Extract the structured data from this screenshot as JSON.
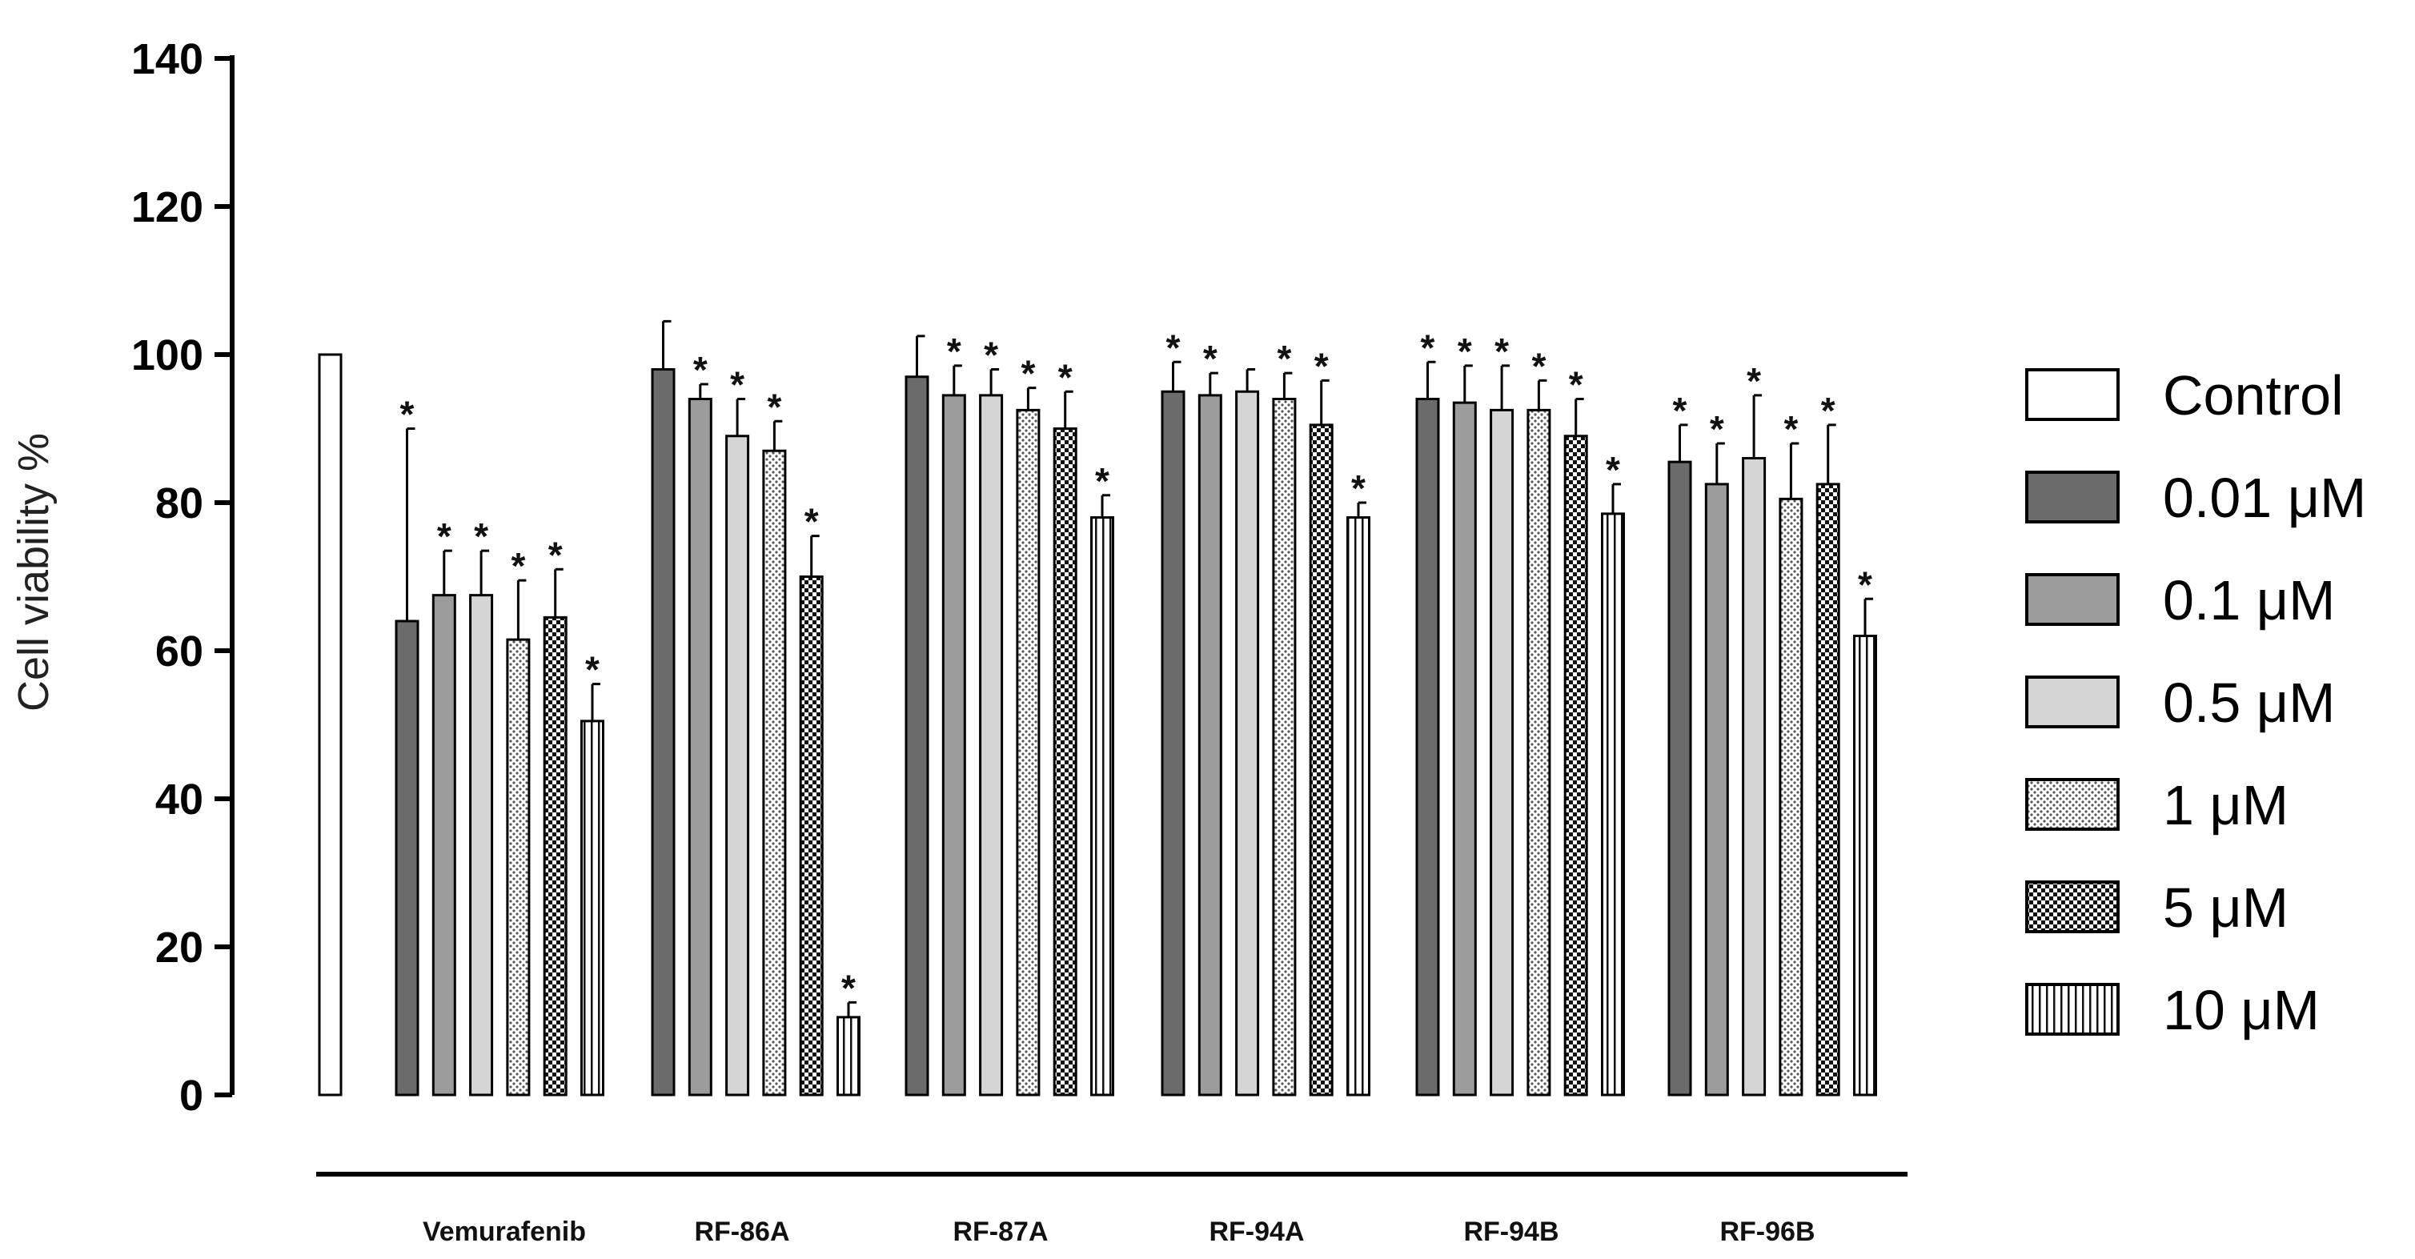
{
  "chart_data": {
    "type": "bar",
    "ylabel": "Cell viability %",
    "xlabel": "",
    "ylim": [
      0,
      140
    ],
    "yticks": [
      "0",
      "20",
      "40",
      "60",
      "80",
      "100",
      "120",
      "140"
    ],
    "grid": false,
    "legend_position": "right",
    "star_symbol": "*",
    "control": {
      "name": "Control",
      "value": 100,
      "error": 0
    },
    "categories": [
      "Vemurafenib",
      "RF-86A",
      "RF-87A",
      "RF-94A",
      "RF-94B",
      "RF-96B"
    ],
    "series": [
      {
        "name": "0.01 μM",
        "values": [
          64,
          98,
          97,
          95,
          94,
          85.5
        ],
        "errors": [
          26,
          6.5,
          5.5,
          4,
          5,
          5
        ],
        "significant": [
          true,
          false,
          false,
          true,
          true,
          true
        ]
      },
      {
        "name": "0.1 μM",
        "values": [
          67.5,
          94,
          94.5,
          94.5,
          93.5,
          82.5
        ],
        "errors": [
          6,
          2,
          4,
          3,
          5,
          5.5
        ],
        "significant": [
          true,
          true,
          true,
          true,
          true,
          true
        ]
      },
      {
        "name": "0.5 μM",
        "values": [
          67.5,
          89,
          94.5,
          95,
          92.5,
          86
        ],
        "errors": [
          6,
          5,
          3.5,
          3,
          6,
          8.5
        ],
        "significant": [
          true,
          true,
          true,
          false,
          true,
          true
        ]
      },
      {
        "name": "1 μM",
        "values": [
          61.5,
          87,
          92.5,
          94,
          92.5,
          80.5
        ],
        "errors": [
          8,
          4,
          3,
          3.5,
          4,
          7.5
        ],
        "significant": [
          true,
          true,
          true,
          true,
          true,
          true
        ]
      },
      {
        "name": "5 μM",
        "values": [
          64.5,
          70,
          90,
          90.5,
          89,
          82.5
        ],
        "errors": [
          6.5,
          5.5,
          5,
          6,
          5,
          8
        ],
        "significant": [
          true,
          true,
          true,
          true,
          true,
          true
        ]
      },
      {
        "name": "10 μM",
        "values": [
          50.5,
          10.5,
          78,
          78,
          78.5,
          62
        ],
        "errors": [
          5,
          2,
          3,
          2,
          4,
          5
        ],
        "significant": [
          true,
          true,
          true,
          true,
          true,
          true
        ]
      }
    ]
  }
}
